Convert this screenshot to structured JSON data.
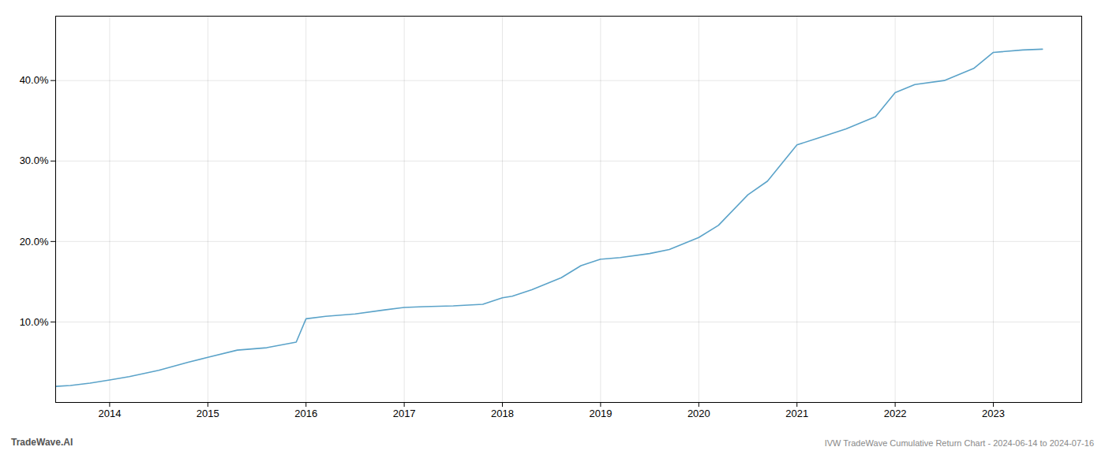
{
  "chart_data": {
    "type": "line",
    "title": "IVW TradeWave Cumulative Return Chart - 2024-06-14 to 2024-07-16",
    "annotations": [
      "TradeWave.AI"
    ],
    "color": "#5ba3c9",
    "grid": true,
    "x": [
      2013.45,
      2013.6,
      2013.8,
      2014.0,
      2014.2,
      2014.5,
      2014.8,
      2015.0,
      2015.3,
      2015.6,
      2015.9,
      2016.0,
      2016.2,
      2016.5,
      2016.8,
      2017.0,
      2017.2,
      2017.5,
      2017.8,
      2018.0,
      2018.1,
      2018.3,
      2018.6,
      2018.8,
      2019.0,
      2019.2,
      2019.5,
      2019.7,
      2020.0,
      2020.2,
      2020.5,
      2020.7,
      2021.0,
      2021.2,
      2021.5,
      2021.8,
      2022.0,
      2022.2,
      2022.5,
      2022.8,
      2023.0,
      2023.3,
      2023.5
    ],
    "values": [
      2.0,
      2.1,
      2.4,
      2.8,
      3.2,
      4.0,
      5.0,
      5.6,
      6.5,
      6.8,
      7.5,
      10.4,
      10.7,
      11.0,
      11.5,
      11.8,
      11.9,
      12.0,
      12.2,
      13.0,
      13.2,
      14.0,
      15.5,
      17.0,
      17.8,
      18.0,
      18.5,
      19.0,
      20.5,
      22.0,
      25.8,
      27.5,
      32.0,
      32.8,
      34.0,
      35.5,
      38.5,
      39.5,
      40.0,
      41.5,
      43.5,
      43.8,
      43.9
    ],
    "xlim": [
      2013.45,
      2023.9
    ],
    "xticks": [
      2014,
      2015,
      2016,
      2017,
      2018,
      2019,
      2020,
      2021,
      2022,
      2023
    ],
    "ylim": [
      0,
      48
    ],
    "yticks": [
      {
        "value": 10.0,
        "label": "10.0%"
      },
      {
        "value": 20.0,
        "label": "20.0%"
      },
      {
        "value": 30.0,
        "label": "30.0%"
      },
      {
        "value": 40.0,
        "label": "40.0%"
      }
    ]
  }
}
